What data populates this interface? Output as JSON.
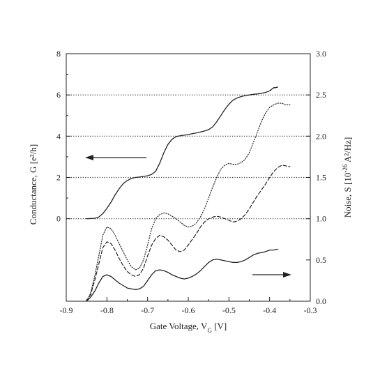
{
  "chart_data": {
    "type": "line",
    "title": "",
    "xlabel": "Gate Voltage, V",
    "xlabel_sub": "G",
    "xlabel_unit": " [V]",
    "ylabel_left": "Conductance, G [e²/h]",
    "ylabel_right_prefix": "Noise, S [10",
    "ylabel_right_exp": "-26",
    "ylabel_right_suffix": " A²/Hz]",
    "xlim": [
      -0.9,
      -0.3
    ],
    "ylim_left": [
      -4,
      8
    ],
    "ylim_right": [
      0.0,
      3.0
    ],
    "x_ticks": [
      "-0.9",
      "-0.8",
      "-0.7",
      "-0.6",
      "-0.5",
      "-0.4",
      "-0.3"
    ],
    "y_left_ticks": [
      "0",
      "2",
      "4",
      "6",
      "8"
    ],
    "y_right_ticks": [
      "0.0",
      "0.5",
      "1.0",
      "1.5",
      "2.0",
      "2.5",
      "3.0"
    ],
    "reference_lines_conductance": [
      0,
      2,
      4,
      6
    ],
    "grid": false,
    "annotations": [
      {
        "kind": "arrow",
        "direction": "left",
        "meaning": "conductance curve uses left axis"
      },
      {
        "kind": "arrow",
        "direction": "right",
        "meaning": "noise curves use right axis"
      }
    ],
    "series": [
      {
        "axis": "left",
        "style": "solid",
        "x": [
          -0.85,
          -0.83,
          -0.82,
          -0.81,
          -0.8,
          -0.79,
          -0.78,
          -0.77,
          -0.76,
          -0.75,
          -0.74,
          -0.73,
          -0.72,
          -0.71,
          -0.7,
          -0.69,
          -0.68,
          -0.67,
          -0.66,
          -0.65,
          -0.64,
          -0.63,
          -0.62,
          -0.61,
          -0.6,
          -0.59,
          -0.58,
          -0.57,
          -0.56,
          -0.55,
          -0.54,
          -0.53,
          -0.52,
          -0.51,
          -0.5,
          -0.49,
          -0.48,
          -0.47,
          -0.46,
          -0.45,
          -0.44,
          -0.43,
          -0.42,
          -0.41,
          -0.4,
          -0.39,
          -0.385,
          -0.38
        ],
        "y": [
          0.0,
          0.02,
          0.08,
          0.25,
          0.5,
          0.8,
          1.15,
          1.45,
          1.7,
          1.85,
          1.95,
          2.0,
          2.02,
          2.05,
          2.08,
          2.15,
          2.3,
          2.7,
          3.2,
          3.6,
          3.85,
          3.98,
          4.02,
          4.05,
          4.08,
          4.12,
          4.16,
          4.2,
          4.25,
          4.32,
          4.45,
          4.7,
          5.0,
          5.3,
          5.55,
          5.75,
          5.85,
          5.92,
          5.97,
          6.0,
          6.03,
          6.05,
          6.08,
          6.12,
          6.2,
          6.35,
          6.35,
          6.38
        ]
      },
      {
        "axis": "right",
        "style": "dotted",
        "x": [
          -0.85,
          -0.84,
          -0.83,
          -0.82,
          -0.81,
          -0.8,
          -0.79,
          -0.78,
          -0.77,
          -0.76,
          -0.75,
          -0.74,
          -0.73,
          -0.72,
          -0.71,
          -0.7,
          -0.69,
          -0.68,
          -0.67,
          -0.66,
          -0.65,
          -0.64,
          -0.63,
          -0.62,
          -0.61,
          -0.6,
          -0.59,
          -0.58,
          -0.57,
          -0.56,
          -0.55,
          -0.54,
          -0.53,
          -0.52,
          -0.51,
          -0.5,
          -0.49,
          -0.48,
          -0.47,
          -0.46,
          -0.45,
          -0.44,
          -0.43,
          -0.42,
          -0.41,
          -0.4,
          -0.39,
          -0.38,
          -0.37,
          -0.36,
          -0.35
        ],
        "y": [
          0.0,
          0.1,
          0.3,
          0.55,
          0.8,
          0.9,
          0.88,
          0.8,
          0.7,
          0.6,
          0.5,
          0.42,
          0.38,
          0.4,
          0.5,
          0.68,
          0.88,
          1.0,
          1.05,
          1.07,
          1.06,
          1.03,
          1.0,
          0.96,
          0.92,
          0.9,
          0.91,
          0.95,
          1.02,
          1.12,
          1.25,
          1.38,
          1.5,
          1.6,
          1.65,
          1.67,
          1.66,
          1.66,
          1.68,
          1.72,
          1.8,
          1.92,
          2.05,
          2.18,
          2.28,
          2.35,
          2.38,
          2.4,
          2.4,
          2.38,
          2.38
        ]
      },
      {
        "axis": "right",
        "style": "dashed",
        "x": [
          -0.85,
          -0.84,
          -0.83,
          -0.82,
          -0.81,
          -0.8,
          -0.79,
          -0.78,
          -0.77,
          -0.76,
          -0.75,
          -0.74,
          -0.73,
          -0.72,
          -0.71,
          -0.7,
          -0.69,
          -0.68,
          -0.67,
          -0.66,
          -0.65,
          -0.64,
          -0.63,
          -0.62,
          -0.61,
          -0.6,
          -0.59,
          -0.58,
          -0.57,
          -0.56,
          -0.55,
          -0.54,
          -0.53,
          -0.52,
          -0.51,
          -0.5,
          -0.49,
          -0.48,
          -0.47,
          -0.46,
          -0.45,
          -0.44,
          -0.43,
          -0.42,
          -0.41,
          -0.4,
          -0.39,
          -0.38,
          -0.37,
          -0.36,
          -0.35
        ],
        "y": [
          0.0,
          0.08,
          0.25,
          0.45,
          0.65,
          0.72,
          0.7,
          0.62,
          0.52,
          0.43,
          0.36,
          0.32,
          0.3,
          0.32,
          0.4,
          0.55,
          0.68,
          0.76,
          0.8,
          0.78,
          0.74,
          0.68,
          0.62,
          0.6,
          0.62,
          0.68,
          0.75,
          0.82,
          0.9,
          0.96,
          1.0,
          1.02,
          1.03,
          1.02,
          1.0,
          0.98,
          0.96,
          0.97,
          1.0,
          1.05,
          1.12,
          1.2,
          1.28,
          1.35,
          1.42,
          1.5,
          1.57,
          1.62,
          1.65,
          1.64,
          1.63
        ]
      },
      {
        "axis": "right",
        "style": "solid",
        "x": [
          -0.85,
          -0.84,
          -0.83,
          -0.82,
          -0.81,
          -0.8,
          -0.79,
          -0.78,
          -0.77,
          -0.76,
          -0.75,
          -0.74,
          -0.73,
          -0.72,
          -0.71,
          -0.7,
          -0.69,
          -0.68,
          -0.67,
          -0.66,
          -0.65,
          -0.64,
          -0.63,
          -0.62,
          -0.61,
          -0.6,
          -0.59,
          -0.58,
          -0.57,
          -0.56,
          -0.55,
          -0.54,
          -0.53,
          -0.52,
          -0.51,
          -0.5,
          -0.49,
          -0.48,
          -0.47,
          -0.46,
          -0.45,
          -0.44,
          -0.43,
          -0.42,
          -0.41,
          -0.4,
          -0.39,
          -0.38
        ],
        "y": [
          0.0,
          0.05,
          0.12,
          0.22,
          0.3,
          0.32,
          0.3,
          0.26,
          0.22,
          0.19,
          0.16,
          0.15,
          0.14,
          0.15,
          0.18,
          0.25,
          0.32,
          0.37,
          0.38,
          0.37,
          0.35,
          0.32,
          0.3,
          0.28,
          0.27,
          0.28,
          0.3,
          0.33,
          0.37,
          0.42,
          0.47,
          0.5,
          0.51,
          0.5,
          0.49,
          0.48,
          0.47,
          0.47,
          0.48,
          0.5,
          0.53,
          0.56,
          0.58,
          0.59,
          0.6,
          0.62,
          0.62,
          0.63
        ]
      }
    ]
  }
}
